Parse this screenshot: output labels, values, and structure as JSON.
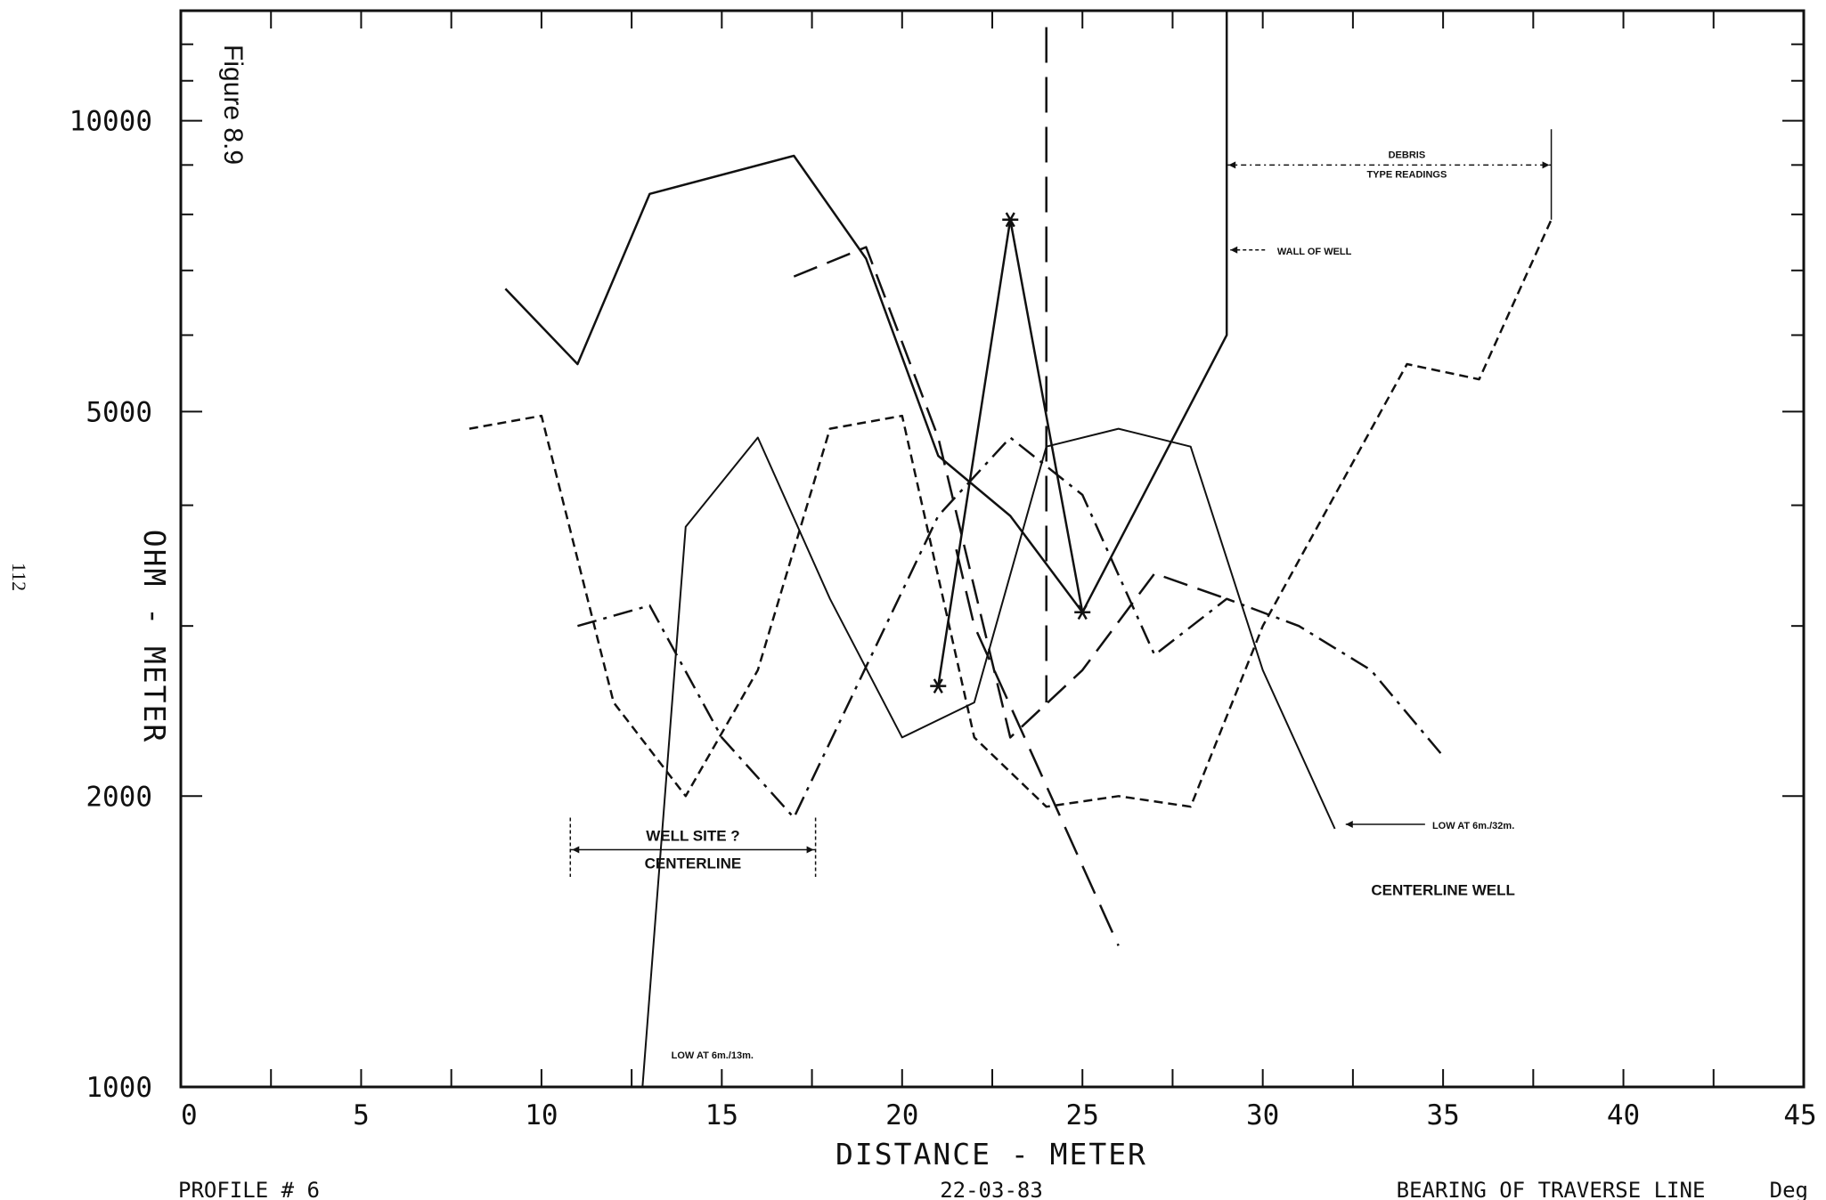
{
  "figure_label": "Figure 8.9",
  "page_number": "112",
  "footer": {
    "profile": "PROFILE # 6",
    "date": "22-03-83",
    "bearing": "BEARING OF TRAVERSE LINE ___ Deg"
  },
  "chart_data": {
    "type": "line",
    "xlabel": "DISTANCE - METER",
    "ylabel": "OHM - METER",
    "xlim": [
      0,
      45
    ],
    "ylim": [
      1000,
      13000
    ],
    "y_scale": "log",
    "x_ticks": [
      0,
      5,
      10,
      15,
      20,
      25,
      30,
      35,
      40,
      45
    ],
    "y_ticks": [
      1000,
      2000,
      5000,
      10000
    ],
    "y_tick_labels": [
      "1000",
      "2000",
      "5000",
      "10000"
    ],
    "series": [
      {
        "style": "solid",
        "points": [
          [
            9,
            6700
          ],
          [
            11,
            5600
          ],
          [
            13,
            8400
          ],
          [
            17,
            9200
          ],
          [
            19,
            7200
          ],
          [
            21,
            4500
          ],
          [
            23,
            3900
          ],
          [
            25,
            3100
          ]
        ]
      },
      {
        "style": "solid-star",
        "points": [
          [
            21,
            2600
          ],
          [
            23,
            7900
          ],
          [
            25,
            3100
          ],
          [
            29,
            6000
          ],
          [
            29,
            13000
          ]
        ]
      },
      {
        "style": "solid-thin",
        "points": [
          [
            12.8,
            1000
          ],
          [
            14,
            3800
          ],
          [
            16,
            4700
          ],
          [
            18,
            3200
          ],
          [
            20,
            2300
          ],
          [
            22,
            2500
          ],
          [
            24,
            4600
          ],
          [
            26,
            4800
          ],
          [
            28,
            4600
          ],
          [
            30,
            2700
          ],
          [
            32,
            1850
          ]
        ]
      },
      {
        "style": "short-dash",
        "points": [
          [
            8,
            4800
          ],
          [
            10,
            4950
          ],
          [
            12,
            2500
          ],
          [
            14,
            2000
          ],
          [
            16,
            2700
          ],
          [
            18,
            4800
          ],
          [
            20,
            4950
          ],
          [
            22,
            2300
          ],
          [
            24,
            1950
          ],
          [
            26,
            2000
          ],
          [
            28,
            1950
          ],
          [
            30,
            3000
          ],
          [
            34,
            5600
          ],
          [
            36,
            5400
          ],
          [
            38,
            7900
          ]
        ]
      },
      {
        "style": "dash-dot",
        "points": [
          [
            11,
            3000
          ],
          [
            13,
            3150
          ],
          [
            15,
            2300
          ],
          [
            17,
            1900
          ],
          [
            21,
            3900
          ],
          [
            23,
            4700
          ],
          [
            25,
            4100
          ],
          [
            27,
            2800
          ],
          [
            29,
            3200
          ],
          [
            31,
            3000
          ],
          [
            33,
            2700
          ],
          [
            35,
            2200
          ]
        ]
      },
      {
        "style": "long-dash",
        "points": [
          [
            17,
            6900
          ],
          [
            19,
            7400
          ],
          [
            21,
            4700
          ],
          [
            23,
            2300
          ],
          [
            25,
            2700
          ],
          [
            27,
            3400
          ],
          [
            29,
            3200
          ]
        ]
      },
      {
        "style": "long-dash-steep",
        "points": [
          [
            21.5,
            3600
          ],
          [
            22,
            3000
          ],
          [
            26,
            1400
          ]
        ]
      },
      {
        "style": "vertical-dash",
        "points": [
          [
            24,
            12500
          ],
          [
            24,
            2500
          ]
        ]
      }
    ],
    "annotations": [
      {
        "text": "DEBRIS",
        "size": "small"
      },
      {
        "text": "TYPE READINGS",
        "size": "small"
      },
      {
        "text": "WALL OF WELL",
        "size": "small"
      },
      {
        "text": "WELL SITE ?",
        "size": "big"
      },
      {
        "text": "CENTERLINE",
        "size": "big"
      },
      {
        "text": "CENTERLINE WELL",
        "size": "big"
      },
      {
        "text": "LOW AT 6m./32m.",
        "size": "small"
      },
      {
        "text": "LOW AT 6m./13m.",
        "size": "small"
      }
    ]
  }
}
